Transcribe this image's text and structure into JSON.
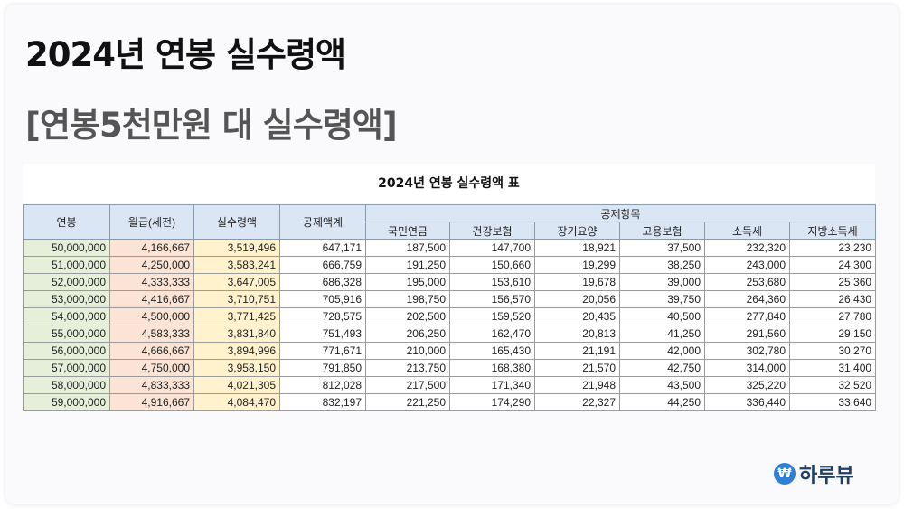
{
  "title": "2024년 연봉 실수령액",
  "subtitle": "[연봉5천만원 대 실수령액]",
  "table": {
    "title": "2024년 연봉 실수령액 표",
    "headers": {
      "salary": "연봉",
      "monthly": "월급(세전)",
      "net": "실수령액",
      "deduction_total": "공제액계",
      "deduction_group": "공제항목",
      "pension": "국민연금",
      "health": "건강보험",
      "longterm": "장기요양",
      "employment": "고용보험",
      "income_tax": "소득세",
      "local_tax": "지방소득세"
    },
    "rows": [
      [
        "50,000,000",
        "4,166,667",
        "3,519,496",
        "647,171",
        "187,500",
        "147,700",
        "18,921",
        "37,500",
        "232,320",
        "23,230"
      ],
      [
        "51,000,000",
        "4,250,000",
        "3,583,241",
        "666,759",
        "191,250",
        "150,660",
        "19,299",
        "38,250",
        "243,000",
        "24,300"
      ],
      [
        "52,000,000",
        "4,333,333",
        "3,647,005",
        "686,328",
        "195,000",
        "153,610",
        "19,678",
        "39,000",
        "253,680",
        "25,360"
      ],
      [
        "53,000,000",
        "4,416,667",
        "3,710,751",
        "705,916",
        "198,750",
        "156,570",
        "20,056",
        "39,750",
        "264,360",
        "26,430"
      ],
      [
        "54,000,000",
        "4,500,000",
        "3,771,425",
        "728,575",
        "202,500",
        "159,520",
        "20,435",
        "40,500",
        "277,840",
        "27,780"
      ],
      [
        "55,000,000",
        "4,583,333",
        "3,831,840",
        "751,493",
        "206,250",
        "162,470",
        "20,813",
        "41,250",
        "291,560",
        "29,150"
      ],
      [
        "56,000,000",
        "4,666,667",
        "3,894,996",
        "771,671",
        "210,000",
        "165,430",
        "21,191",
        "42,000",
        "302,780",
        "30,270"
      ],
      [
        "57,000,000",
        "4,750,000",
        "3,958,150",
        "791,850",
        "213,750",
        "168,380",
        "21,570",
        "42,750",
        "314,000",
        "31,400"
      ],
      [
        "58,000,000",
        "4,833,333",
        "4,021,305",
        "812,028",
        "217,500",
        "171,340",
        "21,948",
        "43,500",
        "325,220",
        "32,520"
      ],
      [
        "59,000,000",
        "4,916,667",
        "4,084,470",
        "832,197",
        "221,250",
        "174,290",
        "22,327",
        "44,250",
        "336,440",
        "33,640"
      ]
    ]
  },
  "brand": {
    "icon": "₩",
    "name": "하루뷰",
    "icon_name": "won-coin-icon"
  },
  "colors": {
    "header_bg": "#dbe6f4",
    "salary_col_bg": "#e6efd9",
    "monthly_col_bg": "#fbe4d5",
    "net_col_bg": "#fff2cc",
    "brand_accent": "#2f7fd6"
  }
}
